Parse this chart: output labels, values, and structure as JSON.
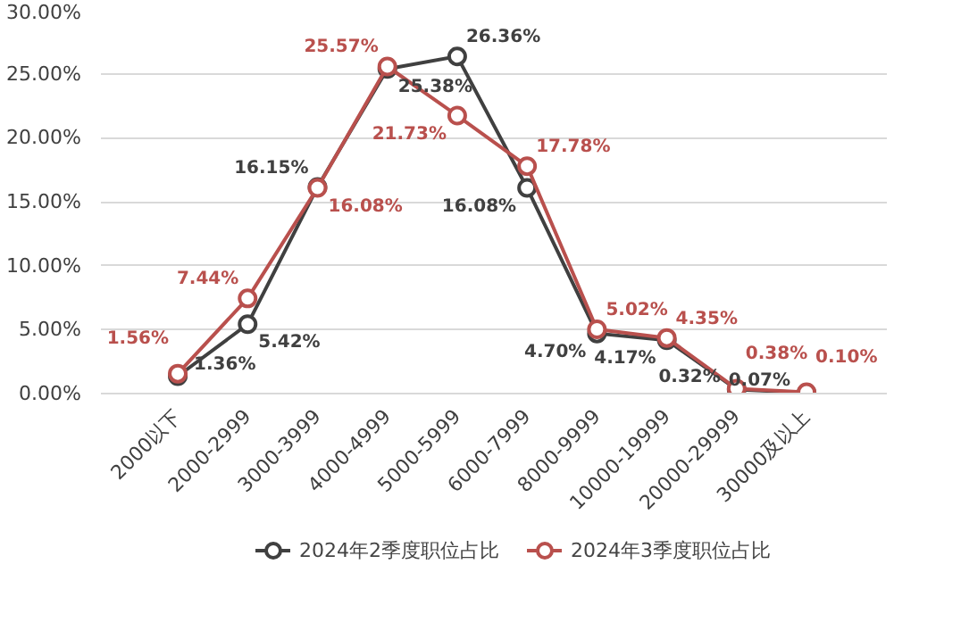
{
  "chart_data": {
    "type": "line",
    "categories": [
      "2000以下",
      "2000-2999",
      "3000-3999",
      "4000-4999",
      "5000-5999",
      "6000-7999",
      "8000-9999",
      "10000-19999",
      "20000-29999",
      "30000及以上"
    ],
    "series": [
      {
        "name": "2024年2季度职位占比",
        "color": "#404040",
        "values": [
          1.36,
          5.42,
          16.15,
          25.38,
          26.36,
          16.08,
          4.7,
          4.17,
          0.32,
          0.07
        ],
        "value_labels": [
          "1.36%",
          "5.42%",
          "16.15%",
          "25.38%",
          "26.36%",
          "16.08%",
          "4.70%",
          "4.17%",
          "0.32%",
          "0.07%"
        ]
      },
      {
        "name": "2024年3季度职位占比",
        "color": "#b9504d",
        "values": [
          1.56,
          7.44,
          16.08,
          25.57,
          21.73,
          17.78,
          5.02,
          4.35,
          0.38,
          0.1
        ],
        "value_labels": [
          "1.56%",
          "7.44%",
          "16.08%",
          "25.57%",
          "21.73%",
          "17.78%",
          "5.02%",
          "4.35%",
          "0.38%",
          "0.10%"
        ]
      }
    ],
    "ylim": [
      0,
      30
    ],
    "yticks": [
      {
        "value": 0,
        "label": "0.00%"
      },
      {
        "value": 5,
        "label": "5.00%"
      },
      {
        "value": 10,
        "label": "10.00%"
      },
      {
        "value": 15,
        "label": "15.00%"
      },
      {
        "value": 20,
        "label": "20.00%"
      },
      {
        "value": 25,
        "label": "25.00%"
      },
      {
        "value": 30,
        "label": "30.00%"
      }
    ],
    "grid": "y",
    "legend": "bottom",
    "marker": "circle",
    "line_style": "solid"
  }
}
